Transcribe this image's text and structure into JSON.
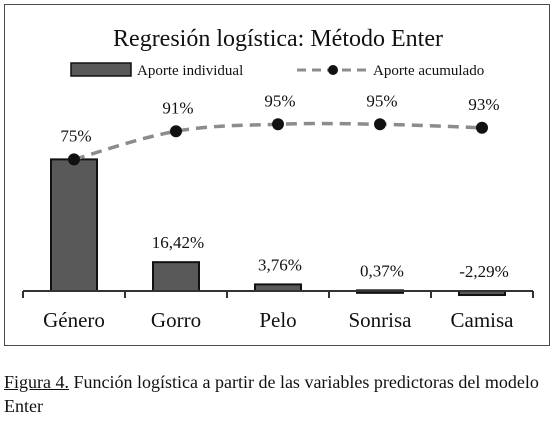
{
  "chart_data": {
    "type": "bar",
    "title": "Regresión logística: Método Enter",
    "categories": [
      "Género",
      "Gorro",
      "Pelo",
      "Sonrisa",
      "Camisa"
    ],
    "series": [
      {
        "name": "Aporte individual",
        "type": "bar",
        "values": [
          75,
          16.42,
          3.76,
          0.37,
          -2.29
        ],
        "labels": [
          "75%",
          "16,42%",
          "3,76%",
          "0,37%",
          "-2,29%"
        ]
      },
      {
        "name": "Aporte acumulado",
        "type": "line",
        "style": "dashed",
        "values": [
          75,
          91,
          95,
          95,
          93
        ],
        "labels": [
          "75%",
          "91%",
          "95%",
          "95%",
          "93%"
        ]
      }
    ],
    "ylim": [
      -5,
      100
    ],
    "grid": false,
    "legend": "top",
    "colors": {
      "bar_fill": "#595959",
      "bar_stroke": "#111111",
      "line": "#8c8c8c",
      "marker": "#111111",
      "axis": "#333333"
    }
  },
  "caption": {
    "label": "Figura 4.",
    "text": "Función logística a partir de las variables predictoras del modelo Enter"
  }
}
